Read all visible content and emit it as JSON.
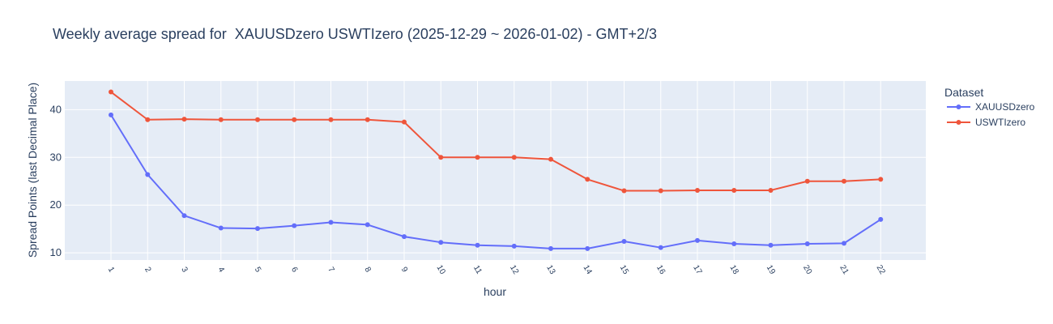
{
  "chart_data": {
    "type": "line",
    "title": "Weekly average spread for  XAUUSDzero USWTIzero (2025-12-29 ~ 2026-01-02) - GMT+2/3",
    "xlabel": "hour",
    "ylabel": "Spread Points (last Decimal Place)",
    "legend_title": "Dataset",
    "legend_position": "top-right",
    "x": [
      "1",
      "2",
      "3",
      "4",
      "5",
      "6",
      "7",
      "8",
      "9",
      "10",
      "11",
      "12",
      "13",
      "14",
      "15",
      "16",
      "17",
      "18",
      "19",
      "20",
      "21",
      "22"
    ],
    "ylim": [
      8.5,
      46
    ],
    "yticks": [
      10,
      20,
      30,
      40
    ],
    "grid": true,
    "series": [
      {
        "name": "XAUUSDzero",
        "color": "#636efa",
        "values": [
          38.9,
          26.4,
          17.8,
          15.2,
          15.1,
          15.7,
          16.4,
          15.9,
          13.4,
          12.2,
          11.6,
          11.4,
          10.9,
          10.9,
          12.4,
          11.1,
          12.6,
          11.9,
          11.6,
          11.9,
          12.0,
          17.0
        ]
      },
      {
        "name": "USWTIzero",
        "color": "#ef553b",
        "values": [
          43.7,
          37.9,
          38.0,
          37.9,
          37.9,
          37.9,
          37.9,
          37.9,
          37.4,
          30.0,
          30.0,
          30.0,
          29.6,
          25.4,
          23.0,
          23.0,
          23.1,
          23.1,
          23.1,
          25.0,
          25.0,
          25.4
        ]
      }
    ]
  }
}
